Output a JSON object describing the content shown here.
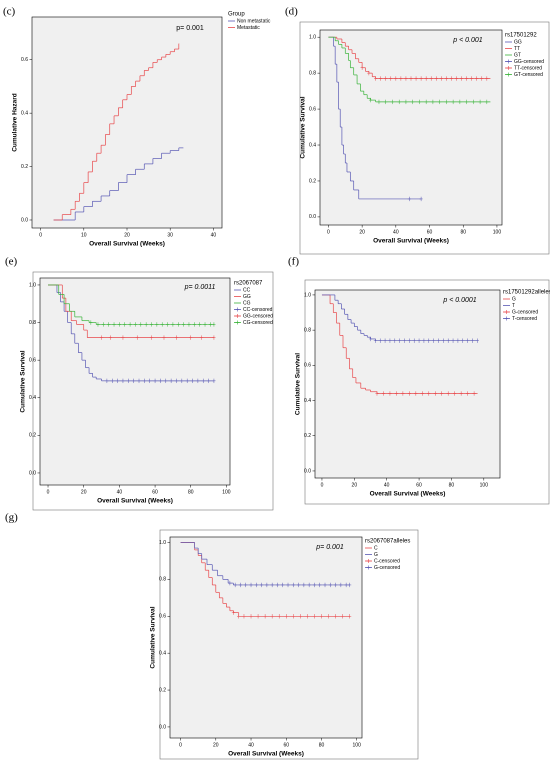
{
  "chart_data": [
    {
      "type": "line",
      "panel_label": "(c)",
      "annotation": "p= 0.001",
      "y_label": "Cumulative Hazard",
      "x_label": "Overall Survival (Weeks)",
      "legend_title": "Group",
      "xlim": [
        -2,
        42
      ],
      "xticks": [
        0,
        10,
        20,
        30,
        40
      ],
      "ylim": [
        -0.03,
        0.76
      ],
      "yticks": [
        {
          "value": 0,
          "label": "0.0"
        },
        {
          "value": 0.2,
          "label": "0.2"
        },
        {
          "value": 0.4,
          "label": "0.4"
        },
        {
          "value": 0.6,
          "label": "0.6"
        }
      ],
      "series": [
        {
          "name": "Non metastatic",
          "color": "#5858b4",
          "x": [
            3,
            8,
            10,
            12,
            14,
            16,
            18,
            20,
            22,
            24,
            26,
            28,
            30,
            32,
            33
          ],
          "values": [
            0,
            0.03,
            0.05,
            0.07,
            0.09,
            0.11,
            0.14,
            0.17,
            0.19,
            0.21,
            0.23,
            0.25,
            0.26,
            0.27,
            0.27
          ]
        },
        {
          "name": "Metastatic",
          "color": "#e8474a",
          "x": [
            3,
            5,
            7,
            8,
            9,
            10,
            11,
            12,
            13,
            14,
            15,
            16,
            17,
            18,
            19,
            20,
            21,
            22,
            23,
            24,
            25,
            26,
            27,
            28,
            29,
            30,
            31,
            32
          ],
          "values": [
            0,
            0.02,
            0.04,
            0.07,
            0.1,
            0.14,
            0.18,
            0.22,
            0.25,
            0.28,
            0.32,
            0.36,
            0.39,
            0.42,
            0.45,
            0.47,
            0.5,
            0.52,
            0.54,
            0.56,
            0.57,
            0.59,
            0.6,
            0.61,
            0.62,
            0.63,
            0.64,
            0.66
          ]
        }
      ]
    },
    {
      "type": "line",
      "panel_label": "(d)",
      "annotation": "p < 0.001",
      "y_label": "Cumulative Survival",
      "x_label": "Overall Survival (Weeks)",
      "legend_title": "rs17501292",
      "xlim": [
        -5,
        103
      ],
      "xticks": [
        0,
        20,
        40,
        60,
        80,
        100
      ],
      "ylim": [
        -0.045,
        1.04
      ],
      "yticks": [
        {
          "value": 0,
          "label": "0.0"
        },
        {
          "value": 0.2,
          "label": "0.2"
        },
        {
          "value": 0.4,
          "label": "0.4"
        },
        {
          "value": 0.6,
          "label": "0.6"
        },
        {
          "value": 0.8,
          "label": "0.8"
        },
        {
          "value": 1,
          "label": "1.0"
        }
      ],
      "series": [
        {
          "name": "GG",
          "color": "#5858b4",
          "x": [
            0,
            3,
            4,
            5,
            6,
            7,
            8,
            9,
            10,
            11,
            13,
            15,
            18,
            55
          ],
          "values": [
            1,
            0.95,
            0.85,
            0.75,
            0.6,
            0.5,
            0.4,
            0.35,
            0.3,
            0.25,
            0.2,
            0.15,
            0.1,
            0.1
          ]
        },
        {
          "name": "TT",
          "color": "#e8474a",
          "x": [
            0,
            5,
            8,
            10,
            12,
            14,
            16,
            18,
            20,
            22,
            24,
            26,
            28,
            96
          ],
          "values": [
            1,
            0.99,
            0.97,
            0.95,
            0.93,
            0.91,
            0.88,
            0.86,
            0.83,
            0.81,
            0.8,
            0.78,
            0.77,
            0.77
          ]
        },
        {
          "name": "GT",
          "color": "#39b339",
          "x": [
            0,
            4,
            6,
            8,
            10,
            12,
            13,
            15,
            17,
            19,
            21,
            23,
            25,
            28,
            96
          ],
          "values": [
            1,
            0.98,
            0.96,
            0.94,
            0.91,
            0.87,
            0.83,
            0.79,
            0.74,
            0.7,
            0.68,
            0.66,
            0.65,
            0.64,
            0.64
          ]
        },
        {
          "name": "GG-censored",
          "color": "#5858b4",
          "marker": "+",
          "x": [
            48,
            55
          ],
          "values": [
            0.1,
            0.1
          ]
        },
        {
          "name": "TT-censored",
          "color": "#e8474a",
          "marker": "+",
          "x": [
            20,
            24,
            28,
            31,
            34,
            37,
            40,
            43,
            46,
            49,
            52,
            55,
            58,
            61,
            64,
            67,
            70,
            73,
            76,
            79,
            82,
            85,
            88,
            91,
            94
          ],
          "values": [
            0.83,
            0.8,
            0.77,
            0.77,
            0.77,
            0.77,
            0.77,
            0.77,
            0.77,
            0.77,
            0.77,
            0.77,
            0.77,
            0.77,
            0.77,
            0.77,
            0.77,
            0.77,
            0.77,
            0.77,
            0.77,
            0.77,
            0.77,
            0.77,
            0.77
          ]
        },
        {
          "name": "GT-censored",
          "color": "#39b339",
          "marker": "+",
          "x": [
            25,
            30,
            34,
            38,
            42,
            46,
            50,
            54,
            58,
            62,
            66,
            70,
            74,
            78,
            82,
            86,
            90,
            94
          ],
          "values": [
            0.65,
            0.64,
            0.64,
            0.64,
            0.64,
            0.64,
            0.64,
            0.64,
            0.64,
            0.64,
            0.64,
            0.64,
            0.64,
            0.64,
            0.64,
            0.64,
            0.64,
            0.64
          ]
        }
      ]
    },
    {
      "type": "line",
      "panel_label": "(e)",
      "annotation": "p= 0.0011",
      "y_label": "Cumulative Survival",
      "x_label": "Overall Survival (Weeks)",
      "legend_title": "rs2067087",
      "xlim": [
        -4.5,
        102
      ],
      "xticks": [
        0,
        20,
        40,
        60,
        80,
        100
      ],
      "ylim": [
        -0.064,
        1.037
      ],
      "yticks": [
        {
          "value": 0,
          "label": "0.0"
        },
        {
          "value": 0.2,
          "label": "0.2"
        },
        {
          "value": 0.4,
          "label": "0.4"
        },
        {
          "value": 0.6,
          "label": "0.6"
        },
        {
          "value": 0.8,
          "label": "0.8"
        },
        {
          "value": 1,
          "label": "1.0"
        }
      ],
      "series": [
        {
          "name": "CC",
          "color": "#5858b4",
          "x": [
            0,
            5,
            7,
            9,
            11,
            13,
            15,
            17,
            19,
            21,
            23,
            25,
            27,
            30,
            33,
            93
          ],
          "values": [
            1,
            0.96,
            0.91,
            0.86,
            0.8,
            0.74,
            0.69,
            0.64,
            0.6,
            0.56,
            0.53,
            0.51,
            0.5,
            0.49,
            0.49,
            0.49
          ]
        },
        {
          "name": "GG",
          "color": "#e8474a",
          "x": [
            0,
            8,
            10,
            13,
            16,
            20,
            22,
            93
          ],
          "values": [
            1,
            0.93,
            0.86,
            0.81,
            0.79,
            0.76,
            0.72,
            0.72
          ]
        },
        {
          "name": "CG",
          "color": "#39b339",
          "x": [
            0,
            6,
            9,
            12,
            15,
            19,
            23,
            27,
            93
          ],
          "values": [
            1,
            0.95,
            0.9,
            0.86,
            0.83,
            0.81,
            0.8,
            0.79,
            0.79
          ]
        },
        {
          "name": "CC-censored",
          "color": "#5858b4",
          "marker": "+",
          "x": [
            33,
            36,
            39,
            42,
            45,
            48,
            51,
            54,
            57,
            60,
            63,
            66,
            69,
            72,
            75,
            78,
            81,
            84,
            87,
            90,
            93
          ],
          "values": [
            0.49,
            0.49,
            0.49,
            0.49,
            0.49,
            0.49,
            0.49,
            0.49,
            0.49,
            0.49,
            0.49,
            0.49,
            0.49,
            0.49,
            0.49,
            0.49,
            0.49,
            0.49,
            0.49,
            0.49,
            0.49
          ]
        },
        {
          "name": "GG-censored",
          "color": "#e8474a",
          "marker": "+",
          "x": [
            30,
            35,
            42,
            50,
            58,
            65,
            72,
            80,
            86,
            93
          ],
          "values": [
            0.72,
            0.72,
            0.72,
            0.72,
            0.72,
            0.72,
            0.72,
            0.72,
            0.72,
            0.72
          ]
        },
        {
          "name": "CG-censored",
          "color": "#39b339",
          "marker": "+",
          "x": [
            24,
            28,
            31,
            34,
            37,
            40,
            43,
            46,
            49,
            52,
            55,
            58,
            61,
            64,
            67,
            70,
            73,
            76,
            79,
            82,
            85,
            88,
            91,
            93
          ],
          "values": [
            0.8,
            0.79,
            0.79,
            0.79,
            0.79,
            0.79,
            0.79,
            0.79,
            0.79,
            0.79,
            0.79,
            0.79,
            0.79,
            0.79,
            0.79,
            0.79,
            0.79,
            0.79,
            0.79,
            0.79,
            0.79,
            0.79,
            0.79,
            0.79
          ]
        }
      ]
    },
    {
      "type": "line",
      "panel_label": "(f)",
      "annotation": "p < 0.0001",
      "y_label": "Cumulative Survival",
      "x_label": "Overall Survival (Weeks)",
      "legend_title": "rs17501292alleles",
      "xlim": [
        -4.3,
        110
      ],
      "xticks": [
        0,
        20,
        40,
        60,
        80,
        100
      ],
      "ylim": [
        -0.04,
        1.028
      ],
      "yticks": [
        {
          "value": 0,
          "label": "0.0"
        },
        {
          "value": 0.2,
          "label": "0.2"
        },
        {
          "value": 0.4,
          "label": "0.4"
        },
        {
          "value": 0.6,
          "label": "0.6"
        },
        {
          "value": 0.8,
          "label": "0.8"
        },
        {
          "value": 1,
          "label": "1.0"
        }
      ],
      "series": [
        {
          "name": "G",
          "color": "#e8474a",
          "x": [
            0,
            5,
            7,
            9,
            11,
            13,
            15,
            17,
            19,
            21,
            24,
            27,
            30,
            34,
            96
          ],
          "values": [
            1,
            0.95,
            0.9,
            0.84,
            0.77,
            0.7,
            0.64,
            0.58,
            0.53,
            0.5,
            0.47,
            0.46,
            0.45,
            0.44,
            0.44
          ]
        },
        {
          "name": "T",
          "color": "#5858b4",
          "x": [
            0,
            8,
            10,
            12,
            14,
            16,
            18,
            20,
            22,
            24,
            26,
            28,
            30,
            33,
            96
          ],
          "values": [
            1,
            0.97,
            0.95,
            0.92,
            0.89,
            0.86,
            0.84,
            0.82,
            0.8,
            0.78,
            0.77,
            0.76,
            0.75,
            0.74,
            0.74
          ]
        },
        {
          "name": "G-censored",
          "color": "#e8474a",
          "marker": "+",
          "x": [
            34,
            38,
            42,
            46,
            50,
            54,
            58,
            62,
            66,
            70,
            74,
            78,
            82,
            86,
            90,
            94
          ],
          "values": [
            0.44,
            0.44,
            0.44,
            0.44,
            0.44,
            0.44,
            0.44,
            0.44,
            0.44,
            0.44,
            0.44,
            0.44,
            0.44,
            0.44,
            0.44,
            0.44
          ]
        },
        {
          "name": "T-censored",
          "color": "#5858b4",
          "marker": "+",
          "x": [
            30,
            33,
            36,
            39,
            42,
            45,
            48,
            51,
            54,
            57,
            60,
            63,
            66,
            69,
            72,
            75,
            78,
            81,
            84,
            87,
            90,
            93,
            96
          ],
          "values": [
            0.75,
            0.74,
            0.74,
            0.74,
            0.74,
            0.74,
            0.74,
            0.74,
            0.74,
            0.74,
            0.74,
            0.74,
            0.74,
            0.74,
            0.74,
            0.74,
            0.74,
            0.74,
            0.74,
            0.74,
            0.74,
            0.74,
            0.74
          ]
        }
      ]
    },
    {
      "type": "line",
      "panel_label": "(g)",
      "annotation": "p= 0.001",
      "y_label": "Cumulative Survival",
      "x_label": "Overall Survival (Weeks)",
      "legend_title": "rs2067087alleles",
      "xlim": [
        -6,
        103
      ],
      "xticks": [
        0,
        20,
        40,
        60,
        80,
        100
      ],
      "ylim": [
        -0.06,
        1.03
      ],
      "yticks": [
        {
          "value": 0,
          "label": "0.0"
        },
        {
          "value": 0.2,
          "label": "0.2"
        },
        {
          "value": 0.4,
          "label": "0.4"
        },
        {
          "value": 0.6,
          "label": "0.6"
        },
        {
          "value": 0.8,
          "label": "0.8"
        },
        {
          "value": 1,
          "label": "1.0"
        }
      ],
      "series": [
        {
          "name": "C",
          "color": "#e8474a",
          "x": [
            0,
            8,
            10,
            12,
            14,
            16,
            18,
            20,
            22,
            24,
            26,
            28,
            30,
            33,
            96
          ],
          "values": [
            1,
            0.96,
            0.93,
            0.89,
            0.85,
            0.81,
            0.77,
            0.73,
            0.7,
            0.67,
            0.65,
            0.63,
            0.62,
            0.6,
            0.6
          ]
        },
        {
          "name": "G",
          "color": "#5858b4",
          "x": [
            0,
            8,
            10,
            12,
            15,
            18,
            21,
            24,
            27,
            30,
            96
          ],
          "values": [
            1,
            0.97,
            0.94,
            0.91,
            0.88,
            0.85,
            0.82,
            0.8,
            0.78,
            0.77,
            0.77
          ]
        },
        {
          "name": "C-censored",
          "color": "#e8474a",
          "marker": "+",
          "x": [
            30,
            33,
            36,
            40,
            44,
            48,
            52,
            56,
            60,
            64,
            68,
            72,
            76,
            80,
            84,
            88,
            92,
            96
          ],
          "values": [
            0.62,
            0.6,
            0.6,
            0.6,
            0.6,
            0.6,
            0.6,
            0.6,
            0.6,
            0.6,
            0.6,
            0.6,
            0.6,
            0.6,
            0.6,
            0.6,
            0.6,
            0.6
          ]
        },
        {
          "name": "G-censored",
          "color": "#5858b4",
          "marker": "+",
          "x": [
            28,
            31,
            34,
            37,
            40,
            43,
            46,
            49,
            52,
            55,
            58,
            61,
            64,
            67,
            70,
            73,
            76,
            79,
            82,
            85,
            88,
            91,
            94,
            96
          ],
          "values": [
            0.78,
            0.77,
            0.77,
            0.77,
            0.77,
            0.77,
            0.77,
            0.77,
            0.77,
            0.77,
            0.77,
            0.77,
            0.77,
            0.77,
            0.77,
            0.77,
            0.77,
            0.77,
            0.77,
            0.77,
            0.77,
            0.77,
            0.77,
            0.77
          ]
        }
      ]
    }
  ]
}
